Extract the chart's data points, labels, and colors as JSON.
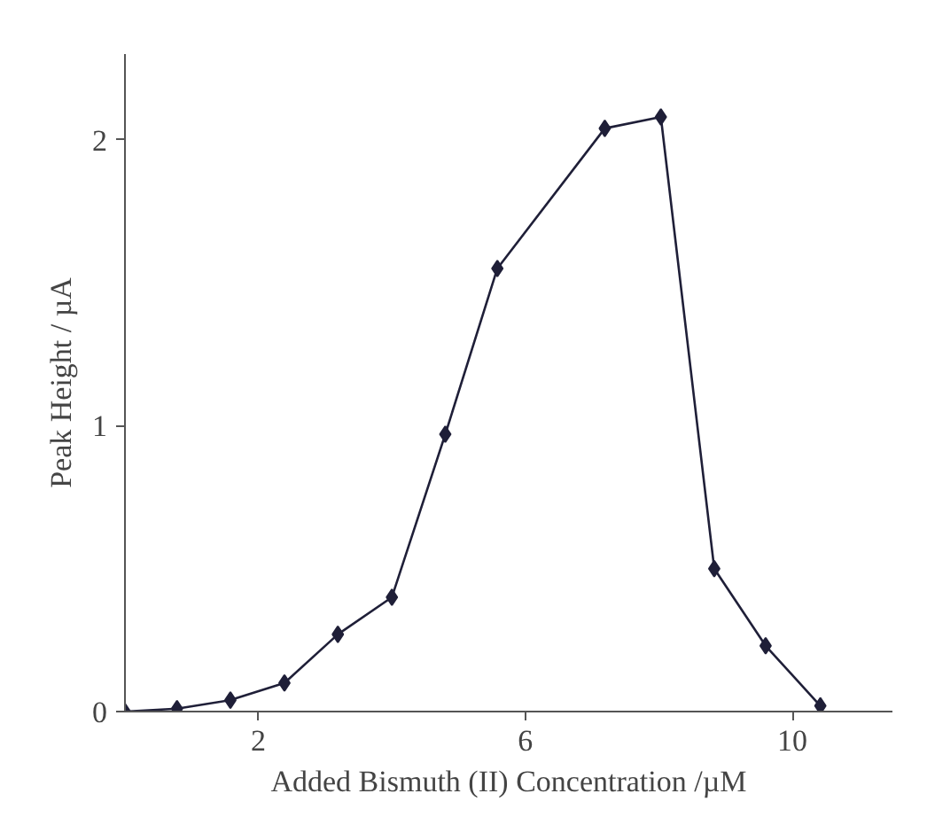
{
  "chart_data": {
    "type": "line",
    "xlabel": "Added Bismuth (II) Concentration /µM",
    "ylabel": "Peak Height / µA",
    "x": [
      0,
      0.78,
      1.58,
      2.39,
      3.19,
      4.0,
      4.8,
      5.58,
      7.19,
      8.03,
      8.83,
      9.6,
      10.42
    ],
    "series": [
      {
        "color": "#1f1f38",
        "values": [
          0,
          0.01,
          0.04,
          0.1,
          0.27,
          0.4,
          0.97,
          1.55,
          2.04,
          2.08,
          0.5,
          0.23,
          0.02
        ]
      }
    ],
    "xlim": [
      0,
      11.5
    ],
    "ylim": [
      0,
      2.3
    ],
    "xticks": [
      2,
      6,
      10
    ],
    "yticks": [
      0,
      1,
      2
    ],
    "grid": false,
    "marker": "diamond",
    "line_style": "solid"
  }
}
